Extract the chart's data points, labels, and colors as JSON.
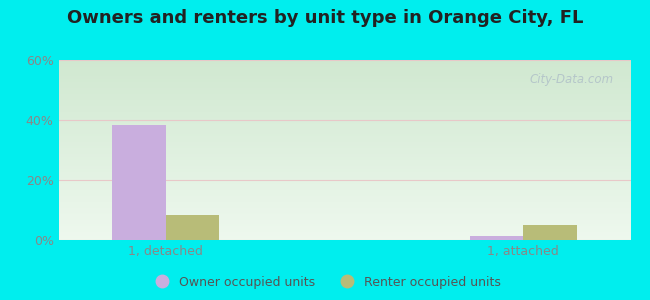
{
  "title": "Owners and renters by unit type in Orange City, FL",
  "title_fontsize": 13,
  "categories": [
    "1, detached",
    "1, attached"
  ],
  "owner_values": [
    38.5,
    1.5
  ],
  "renter_values": [
    8.5,
    5.0
  ],
  "owner_color": "#c9aede",
  "renter_color": "#b8bc78",
  "ylim": [
    0,
    60
  ],
  "yticks": [
    0,
    20,
    40,
    60
  ],
  "ytick_labels": [
    "0%",
    "20%",
    "40%",
    "60%"
  ],
  "bar_width": 0.3,
  "figure_bg": "#00eeee",
  "legend_labels": [
    "Owner occupied units",
    "Renter occupied units"
  ],
  "watermark": "City-Data.com",
  "grid_color": "#e8c8c8",
  "tick_color": "#888888",
  "title_color": "#222222",
  "bg_top_color": "#d8edd8",
  "bg_bottom_color": "#eef8ee"
}
